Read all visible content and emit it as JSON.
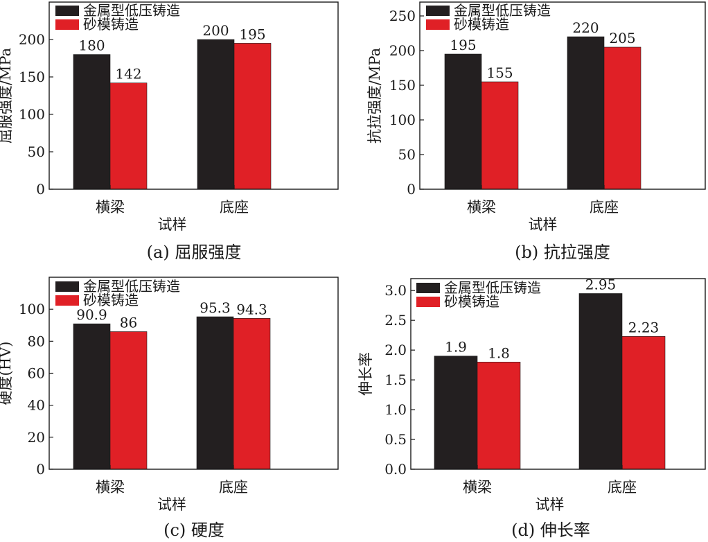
{
  "colors": {
    "series_0": "#231f20",
    "series_1": "#e02026",
    "axis": "#1a1a1a"
  },
  "chart_data": [
    {
      "type": "bar",
      "caption": "(a) 屈服强度",
      "xlabel": "试样",
      "ylabel": "屈服强度/MPa",
      "categories": [
        "横梁",
        "底座"
      ],
      "ylim": [
        0,
        250
      ],
      "yticks": [
        0,
        50,
        100,
        150,
        200
      ],
      "ytick_labels": [
        "0",
        "50",
        "100",
        "150",
        "200"
      ],
      "series": [
        {
          "name": "金属型低压铸造",
          "values": [
            180,
            200
          ],
          "labels": [
            "180",
            "200"
          ]
        },
        {
          "name": "砂模铸造",
          "values": [
            142,
            195
          ],
          "labels": [
            "142",
            "195"
          ]
        }
      ],
      "grid": false,
      "legend": "top-left"
    },
    {
      "type": "bar",
      "caption": "(b) 抗拉强度",
      "xlabel": "试样",
      "ylabel": "抗拉强度/MPa",
      "categories": [
        "横梁",
        "底座"
      ],
      "ylim": [
        0,
        270
      ],
      "yticks": [
        0,
        50,
        100,
        150,
        200,
        250
      ],
      "ytick_labels": [
        "0",
        "50",
        "100",
        "150",
        "200",
        "250"
      ],
      "series": [
        {
          "name": "金属型低压铸造",
          "values": [
            195,
            220
          ],
          "labels": [
            "195",
            "220"
          ]
        },
        {
          "name": "砂模铸造",
          "values": [
            155,
            205
          ],
          "labels": [
            "155",
            "205"
          ]
        }
      ],
      "grid": false,
      "legend": "top-left"
    },
    {
      "type": "bar",
      "caption": "(c) 硬度",
      "xlabel": "试样",
      "ylabel": "硬度(HV)",
      "categories": [
        "横梁",
        "底座"
      ],
      "ylim": [
        0,
        120
      ],
      "yticks": [
        0,
        20,
        40,
        60,
        80,
        100
      ],
      "ytick_labels": [
        "0",
        "20",
        "40",
        "60",
        "80",
        "100"
      ],
      "series": [
        {
          "name": "金属型低压铸造",
          "values": [
            90.9,
            95.3
          ],
          "labels": [
            "90.9",
            "95.3"
          ]
        },
        {
          "name": "砂模铸造",
          "values": [
            86,
            94.3
          ],
          "labels": [
            "86",
            "94.3"
          ]
        }
      ],
      "grid": false,
      "legend": "top-left"
    },
    {
      "type": "bar",
      "caption": "(d) 伸长率",
      "xlabel": "试样",
      "ylabel": "伸长率",
      "categories": [
        "横梁",
        "底座"
      ],
      "ylim": [
        0,
        3.2
      ],
      "yticks": [
        0,
        0.5,
        1,
        1.5,
        2,
        2.5,
        3
      ],
      "ytick_labels": [
        "0.0",
        "0.5",
        "1.0",
        "1.5",
        "2.0",
        "2.5",
        "3.0"
      ],
      "series": [
        {
          "name": "金属型低压铸造",
          "values": [
            1.9,
            2.95
          ],
          "labels": [
            "1.9",
            "2.95"
          ]
        },
        {
          "name": "砂模铸造",
          "values": [
            1.8,
            2.23
          ],
          "labels": [
            "1.8",
            "2.23"
          ]
        }
      ],
      "grid": false,
      "legend": "top-left"
    }
  ]
}
